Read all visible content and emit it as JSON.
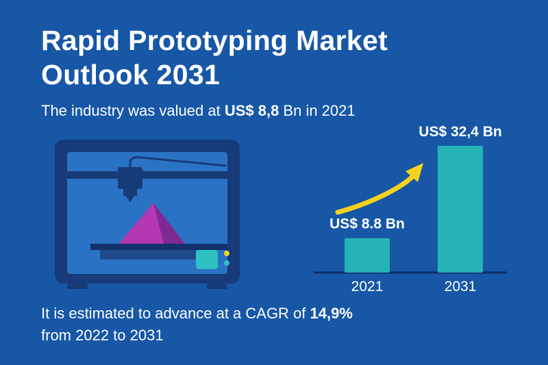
{
  "title_line1": "Rapid Prototyping Market",
  "title_line2": "Outlook 2031",
  "subtitle": {
    "prefix": "The industry was valued at ",
    "value": "US$ 8,8",
    "suffix": " Bn in 2021"
  },
  "footer": {
    "line1_prefix": "It is estimated to advance at a CAGR of ",
    "cagr": "14,9%",
    "line2": "from 2022 to 2031"
  },
  "illustration": {
    "icon": "3d-printer-icon"
  },
  "colors": {
    "background": "#1757a6",
    "bar": "#25b3b6",
    "arrow": "#f6d21f",
    "printer_body": "#173a78",
    "pyramid": "#9b2fa0"
  },
  "chart_data": {
    "type": "bar",
    "categories": [
      "2021",
      "2031"
    ],
    "values": [
      8.8,
      32.4
    ],
    "value_labels": [
      "US$ 8.8 Bn",
      "US$ 32,4 Bn"
    ],
    "ylim": [
      0,
      35
    ],
    "grid": false,
    "trend_arrow": true
  }
}
